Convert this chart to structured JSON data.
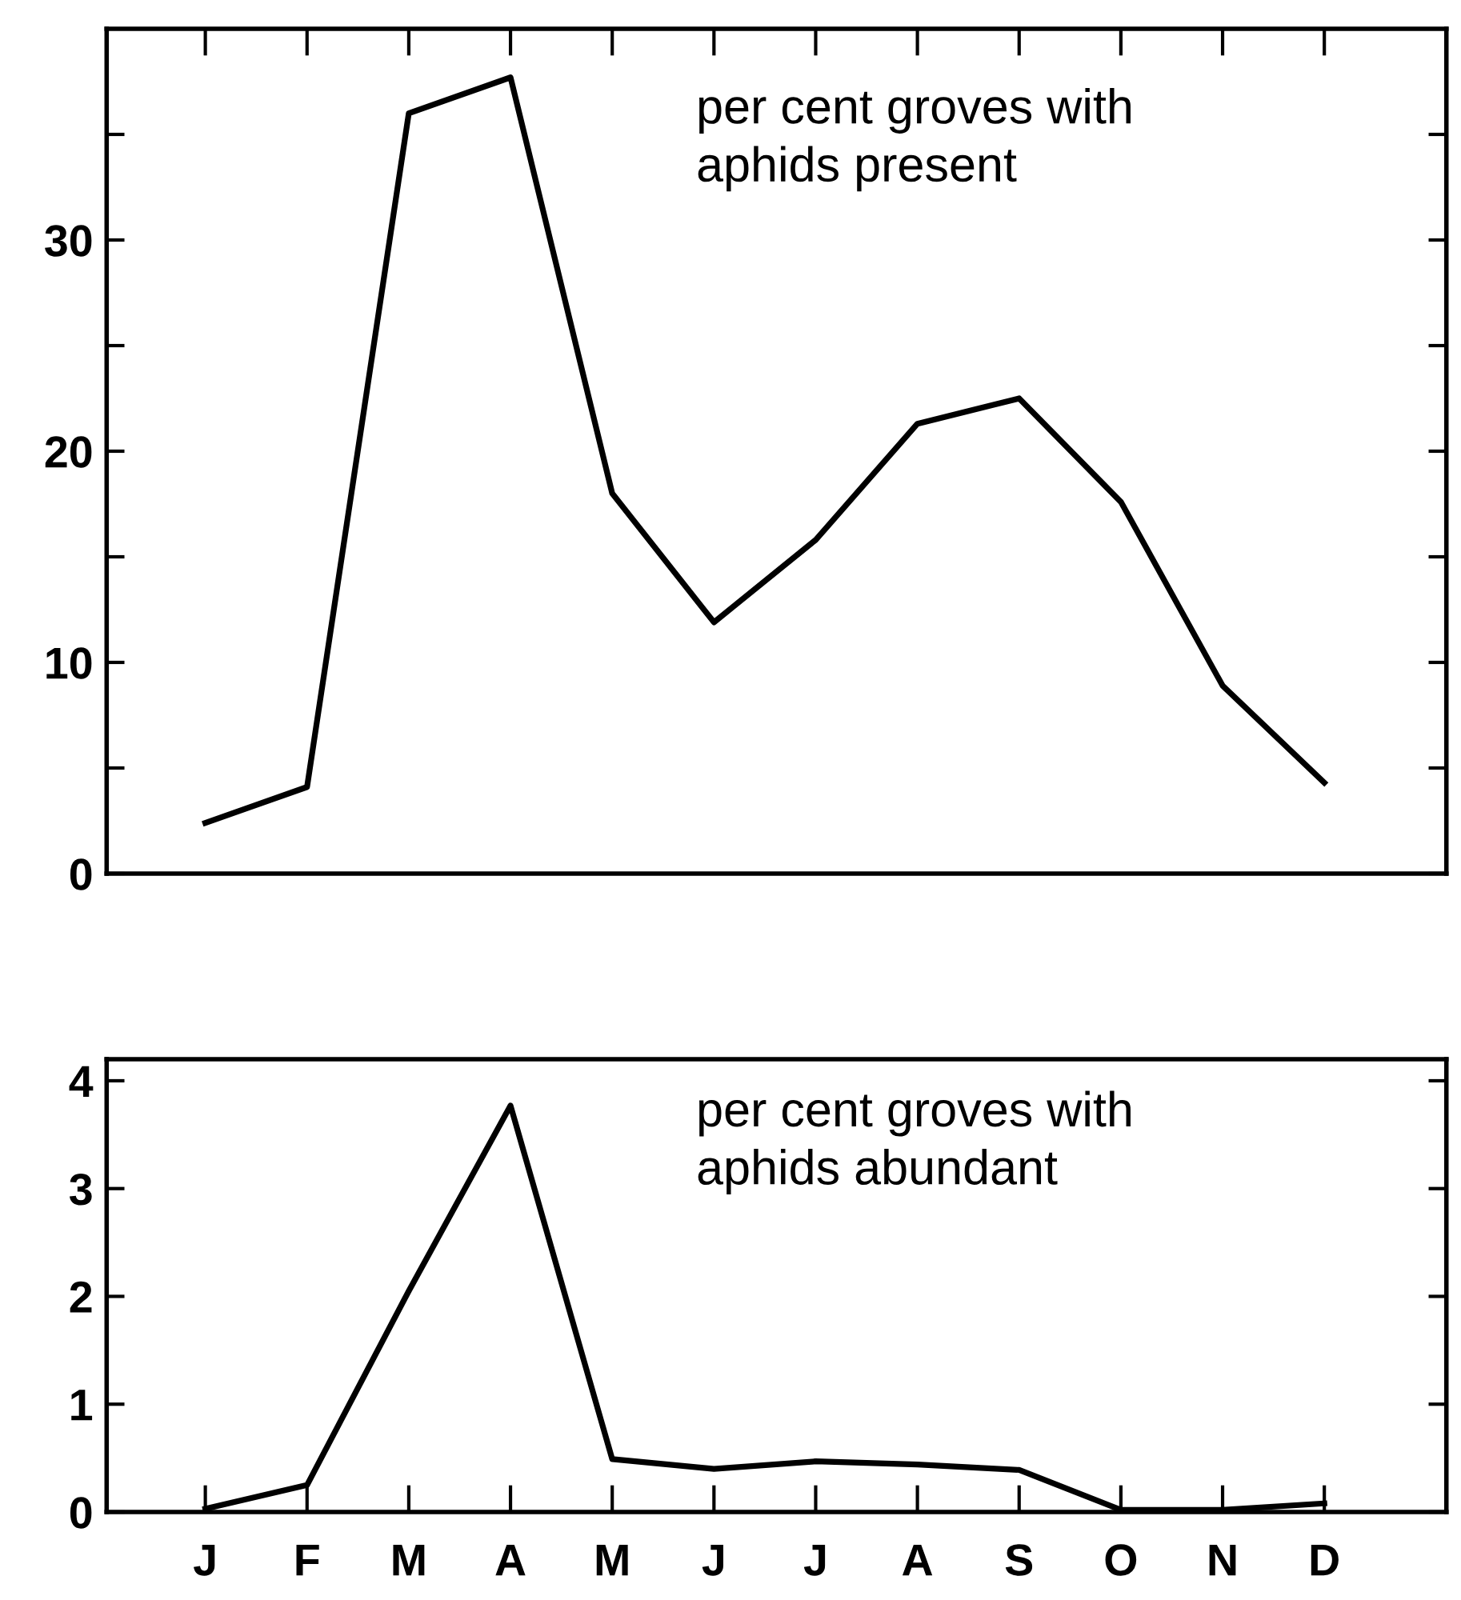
{
  "chart_data": [
    {
      "type": "line",
      "categories": [
        null,
        null,
        null,
        null,
        null,
        null,
        null,
        null,
        null,
        null,
        null,
        null
      ],
      "tick_labels": "y",
      "grid": false,
      "legend": false,
      "series": [
        {
          "color": "#000000",
          "values": [
            2.4,
            4.1,
            36.0,
            37.7,
            18.0,
            11.9,
            15.8,
            21.3,
            22.5,
            17.6,
            8.9,
            4.3
          ]
        }
      ],
      "ylim": [
        0,
        40
      ],
      "yticks": [
        0,
        {
          "value": 5,
          "label": null
        },
        10,
        {
          "value": 15,
          "label": null
        },
        20,
        {
          "value": 25,
          "label": null
        },
        30,
        {
          "value": 35,
          "label": null
        }
      ],
      "annotations": [
        "per cent groves with\naphids present"
      ]
    },
    {
      "type": "line",
      "categories": [
        "J",
        "F",
        "M",
        "A",
        "M",
        "J",
        "J",
        "A",
        "S",
        "O",
        "N",
        "D"
      ],
      "grid": false,
      "legend": false,
      "series": [
        {
          "color": "#000000",
          "values": [
            0.03,
            0.25,
            2.05,
            3.77,
            0.49,
            0.4,
            0.47,
            0.44,
            0.39,
            0.02,
            0.02,
            0.08
          ]
        }
      ],
      "ylim": [
        0,
        4.2
      ],
      "yticks": [
        0,
        1,
        2,
        3,
        4
      ],
      "annotations": [
        "per cent groves with\naphids abundant"
      ]
    }
  ]
}
